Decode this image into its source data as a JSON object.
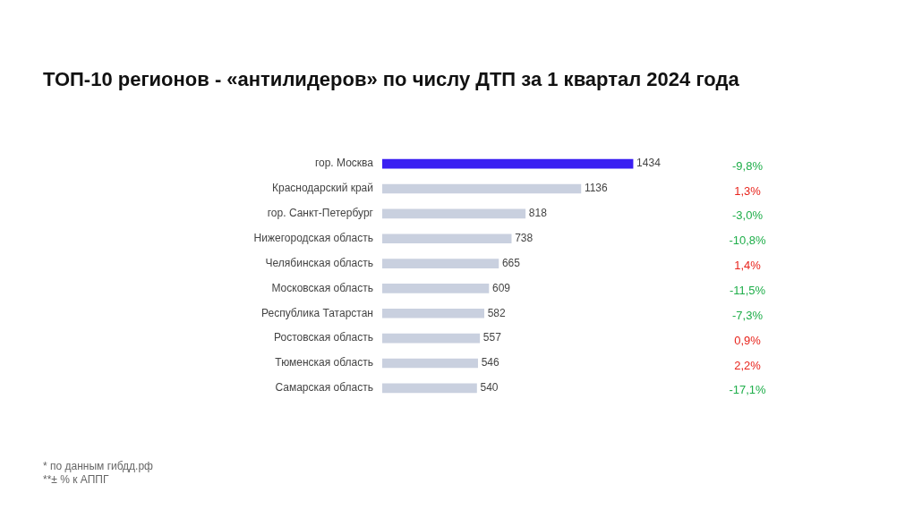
{
  "chart_data": {
    "type": "bar",
    "orientation": "horizontal",
    "title": "ТОП-10 регионов - «антилидеров» по числу ДТП за 1 квартал 2024 года",
    "categories": [
      "гор. Москва",
      "Краснодарский край",
      "гор. Санкт-Петербург",
      "Нижегородская область",
      "Челябинская область",
      "Московская область",
      "Республика Татарстан",
      "Ростовская область",
      "Тюменская область",
      "Самарская область"
    ],
    "values": [
      1434,
      1136,
      818,
      738,
      665,
      609,
      582,
      557,
      546,
      540
    ],
    "colors": [
      "#3a1ff2",
      "#c9d0df",
      "#c9d0df",
      "#c9d0df",
      "#c9d0df",
      "#c9d0df",
      "#c9d0df",
      "#c9d0df",
      "#c9d0df",
      "#c9d0df"
    ],
    "data_labels": true,
    "grid": false,
    "legend": false,
    "tick_labels": "y",
    "annotations": [
      "-9,8%",
      "1,3%",
      "-3,0%",
      "-10,8%",
      "1,4%",
      "-11,5%",
      "-7,3%",
      "0,9%",
      "2,2%",
      "-17,1%",
      "* по данным гибдд.рф",
      "**± % к АППГ"
    ]
  }
}
